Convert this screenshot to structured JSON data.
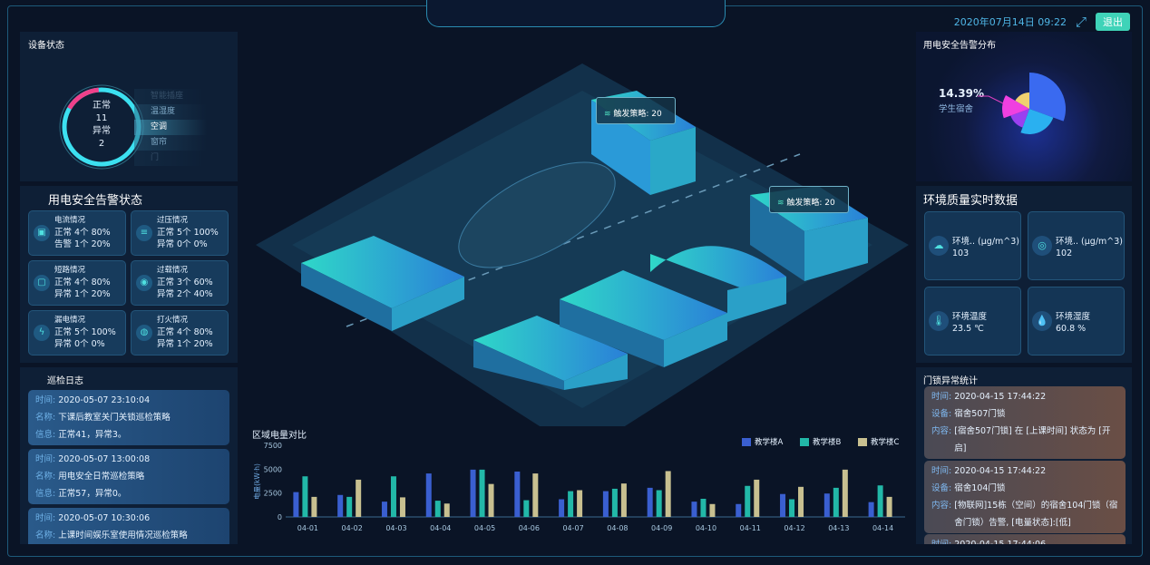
{
  "header": {
    "datetime": "2020年07月14日  09:22",
    "fullscreen_icon": "expand-icon",
    "logout_label": "退出"
  },
  "device_status": {
    "title": "设备状态",
    "normal_label": "正常",
    "normal_count": "11",
    "abnormal_label": "异常",
    "abnormal_count": "2",
    "types": [
      "智能插座",
      "温湿度",
      "空调",
      "窗帘",
      "门"
    ],
    "selected": "空调",
    "colors": {
      "normal": "#3ce0f0",
      "abnormal": "#f0408a"
    }
  },
  "alarm_status": {
    "title": "用电安全告警状态",
    "cards": [
      {
        "icon": "current-icon",
        "name": "电流情况",
        "l1": "正常  4个 80%",
        "l2": "告警  1个 20%"
      },
      {
        "icon": "overvoltage-icon",
        "name": "过压情况",
        "l1": "正常  5个 100%",
        "l2": "异常  0个 0%"
      },
      {
        "icon": "short-circuit-icon",
        "name": "短路情况",
        "l1": "正常  4个 80%",
        "l2": "异常  1个 20%"
      },
      {
        "icon": "overload-icon",
        "name": "过载情况",
        "l1": "正常  3个 60%",
        "l2": "异常  2个 40%"
      },
      {
        "icon": "leakage-icon",
        "name": "漏电情况",
        "l1": "正常  5个 100%",
        "l2": "异常  0个 0%"
      },
      {
        "icon": "spark-icon",
        "name": "打火情况",
        "l1": "正常  4个 80%",
        "l2": "异常  1个 20%"
      }
    ]
  },
  "patrol_log": {
    "title": "巡检日志",
    "time_label": "时间:",
    "name_label": "名称:",
    "info_label": "信息:",
    "items": [
      {
        "time": "2020-05-07 23:10:04",
        "name": "下课后教室关门关锁巡检策略",
        "info": "正常41，异常3。"
      },
      {
        "time": "2020-05-07 13:00:08",
        "name": "用电安全日常巡检策略",
        "info": "正常57，异常0。"
      },
      {
        "time": "2020-05-07 10:30:06",
        "name": "上课时间娱乐室使用情况巡检策略",
        "info": ""
      }
    ]
  },
  "scene": {
    "tags": [
      {
        "label": "触发策略: 20"
      },
      {
        "label": "触发策略: 20"
      }
    ]
  },
  "alarm_distribution": {
    "title": "用电安全告警分布"
  },
  "env": {
    "title": "环境质量实时数据",
    "items": [
      {
        "icon": "pm-icon",
        "label": "环境.. (μg/m^3)",
        "value": "103"
      },
      {
        "icon": "air-icon",
        "label": "环境.. (μg/m^3)",
        "value": "102"
      },
      {
        "icon": "thermometer-icon",
        "label": "环境温度",
        "value": "23.5 ℃"
      },
      {
        "icon": "humidity-icon",
        "label": "环境湿度",
        "value": "60.8 %"
      }
    ]
  },
  "door_lock": {
    "title": "门锁异常统计",
    "time_label": "时间:",
    "device_label": "设备:",
    "content_label": "内容:",
    "items": [
      {
        "time": "2020-04-15 17:44:22",
        "device": "宿舍507门锁",
        "content": "[宿舍507门锁] 在 [上课时间] 状态为 [开启]"
      },
      {
        "time": "2020-04-15 17:44:22",
        "device": "宿舍104门锁",
        "content": "[物联网]15栋（空间）的宿舍104门锁（宿舍门锁）告警, [电量状态]:[低]"
      },
      {
        "time": "2020-04-15 17:44:06",
        "device": "",
        "content": ""
      }
    ]
  },
  "chart_data": [
    {
      "type": "bar",
      "title": "区域电量对比",
      "xlabel": "",
      "ylabel": "电量(kW·h)",
      "ylim": [
        0,
        7500
      ],
      "yticks": [
        0,
        2500,
        5000,
        7500
      ],
      "legend": "top-right",
      "grid": false,
      "categories": [
        "04-01",
        "04-02",
        "04-03",
        "04-04",
        "04-05",
        "04-06",
        "04-07",
        "04-08",
        "04-09",
        "04-10",
        "04-11",
        "04-12",
        "04-13",
        "04-14"
      ],
      "series": [
        {
          "name": "教学楼A",
          "color": "#3a5fd0",
          "values": [
            2600,
            2300,
            1600,
            4550,
            4950,
            4750,
            1850,
            2700,
            3050,
            1600,
            1350,
            2400,
            2450,
            1550
          ]
        },
        {
          "name": "教学楼B",
          "color": "#22b8a8",
          "values": [
            4250,
            2100,
            4250,
            1700,
            4950,
            1750,
            2700,
            2950,
            2800,
            1900,
            3250,
            1850,
            3050,
            3300
          ]
        },
        {
          "name": "教学楼C",
          "color": "#c8c090",
          "values": [
            2100,
            3900,
            2050,
            1400,
            3450,
            4550,
            2800,
            3500,
            4800,
            1350,
            3900,
            3150,
            4950,
            2100
          ]
        }
      ]
    },
    {
      "type": "pie",
      "title": "用电安全告警分布",
      "slices": [
        {
          "name": "学生宿舍",
          "value": 14.39,
          "label": "14.39%"
        }
      ]
    }
  ]
}
